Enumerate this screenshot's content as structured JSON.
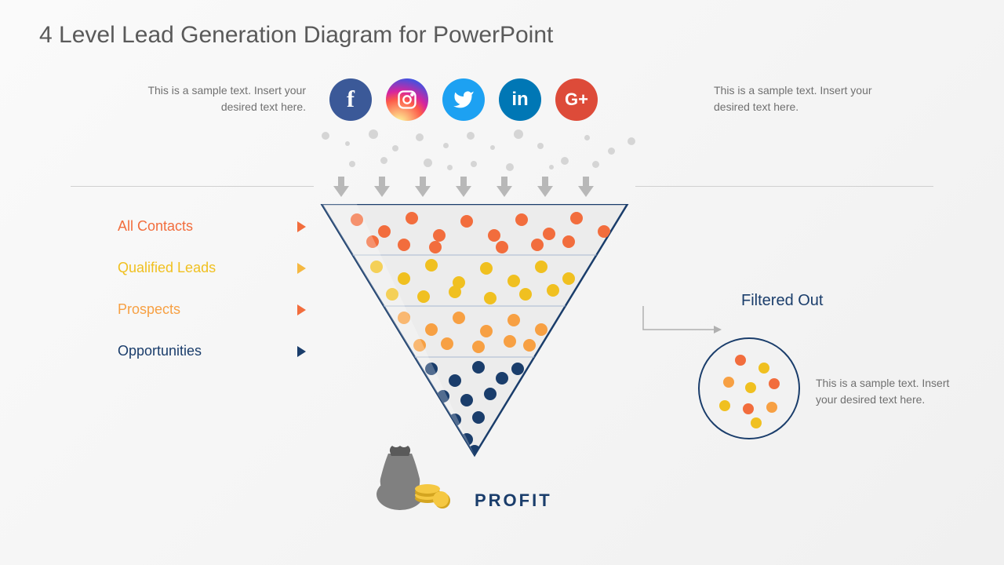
{
  "title": "4 Level Lead Generation Diagram for PowerPoint",
  "sample_text_left": "This is a sample text. Insert your desired text here.",
  "sample_text_right": "This is a sample text. Insert your desired text here.",
  "social_icons": [
    {
      "name": "facebook",
      "bg": "#3b5998",
      "letter": "f"
    },
    {
      "name": "instagram",
      "bg": "radial-gradient(circle at 30% 107%,#fdf497 0%,#fdf497 5%,#fd5949 45%,#d6249f 60%,#285AEB 90%)",
      "letter": ""
    },
    {
      "name": "twitter",
      "bg": "#1da1f2",
      "letter": ""
    },
    {
      "name": "linkedin",
      "bg": "#0077b5",
      "letter": "in"
    },
    {
      "name": "googleplus",
      "bg": "#dd4b39",
      "letter": "G+"
    }
  ],
  "levels": [
    {
      "label": "All Contacts",
      "color": "#f26d3d",
      "tri": "#f26d3d"
    },
    {
      "label": "Qualified Leads",
      "color": "#f0c020",
      "tri": "#f5b841"
    },
    {
      "label": "Prospects",
      "color": "#f7a043",
      "tri": "#f26d3d"
    },
    {
      "label": "Opportunities",
      "color": "#1a3d6b",
      "tri": "#1a3d6b"
    }
  ],
  "funnel": {
    "border_color": "#1a3d6b",
    "bg": "#ececec",
    "line_color": "#a8b8d0",
    "dot_colors": {
      "l1": "#f26d3d",
      "l2": "#f0c020",
      "l3": "#f7a043",
      "l4": "#1a3d6b"
    }
  },
  "filtered_label": "Filtered Out",
  "filtered_color": "#1a3d6b",
  "filtered_text": "This is a sample text. Insert your desired text here.",
  "profit_label": "PROFIT",
  "profit_color": "#1a3d6b",
  "colors": {
    "bag": "#808080",
    "bag_dark": "#5a5a5a",
    "coin": "#f5c842",
    "coin_edge": "#d4a520"
  }
}
